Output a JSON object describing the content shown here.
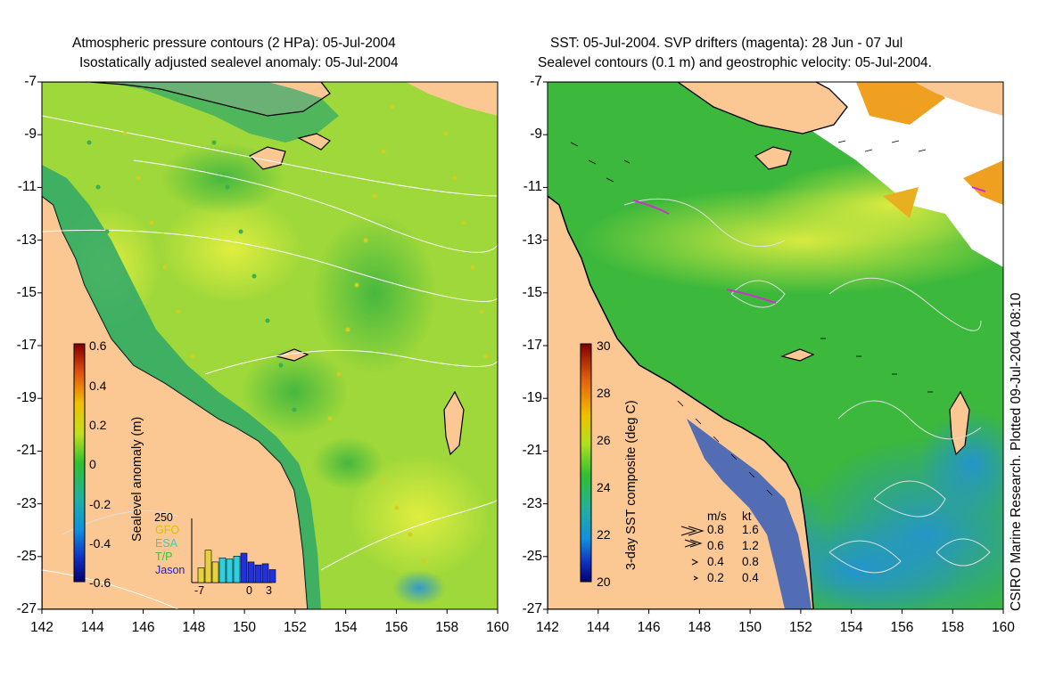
{
  "left_panel": {
    "title_line1": "Atmospheric pressure contours (2 HPa): 05-Jul-2004",
    "title_line2": "Isostatically adjusted sealevel anomaly: 05-Jul-2004",
    "colorbar_label": "Sealevel anomaly (m)",
    "colorbar_ticks": [
      "0.6",
      "0.4",
      "0.2",
      "0",
      "-0.2",
      "-0.4",
      "-0.6"
    ],
    "inset": {
      "y_tick": "250",
      "x_ticks": [
        "-7",
        "0",
        "3"
      ],
      "satellites": [
        {
          "name": "GFO",
          "color": "#d8c000"
        },
        {
          "name": "ESA",
          "color": "#30d0d0"
        },
        {
          "name": "T/P",
          "color": "#40c040"
        },
        {
          "name": "Jason",
          "color": "#2020d0"
        }
      ],
      "bars_relative": [
        0.25,
        0.55,
        0.35,
        0.42,
        0.4,
        0.45,
        0.5,
        0.35,
        0.3,
        0.32,
        0.22
      ]
    }
  },
  "right_panel": {
    "title_line1": "SST: 05-Jul-2004. SVP drifters (magenta): 28 Jun - 07 Jul",
    "title_line2": "Sealevel contours (0.1 m) and geostrophic velocity: 05-Jul-2004.",
    "colorbar_label": "3-day SST composite (deg C)",
    "colorbar_ticks": [
      "30",
      "28",
      "26",
      "24",
      "22",
      "20"
    ],
    "velocity_legend": {
      "header_ms": "m/s",
      "header_kt": "kt",
      "rows": [
        {
          "ms": "0.8",
          "kt": "1.6"
        },
        {
          "ms": "0.6",
          "kt": "1.2"
        },
        {
          "ms": "0.4",
          "kt": "0.8"
        },
        {
          "ms": "0.2",
          "kt": "0.4"
        }
      ]
    }
  },
  "axes": {
    "lat_ticks": [
      "-7",
      "-9",
      "-11",
      "-13",
      "-15",
      "-17",
      "-19",
      "-21",
      "-23",
      "-25",
      "-27"
    ],
    "lon_ticks": [
      "142",
      "144",
      "146",
      "148",
      "150",
      "152",
      "154",
      "156",
      "158",
      "160"
    ],
    "lat_range": [
      -27,
      -7
    ],
    "lon_range": [
      142,
      160
    ]
  },
  "credit": "CSIRO Marine Research. Plotted 09-Jul-2004 08:10",
  "colors": {
    "land": "#fbc793",
    "ocean_left": "#9fd83a",
    "ocean_right": "#3cb83c",
    "coast": "#000000"
  }
}
